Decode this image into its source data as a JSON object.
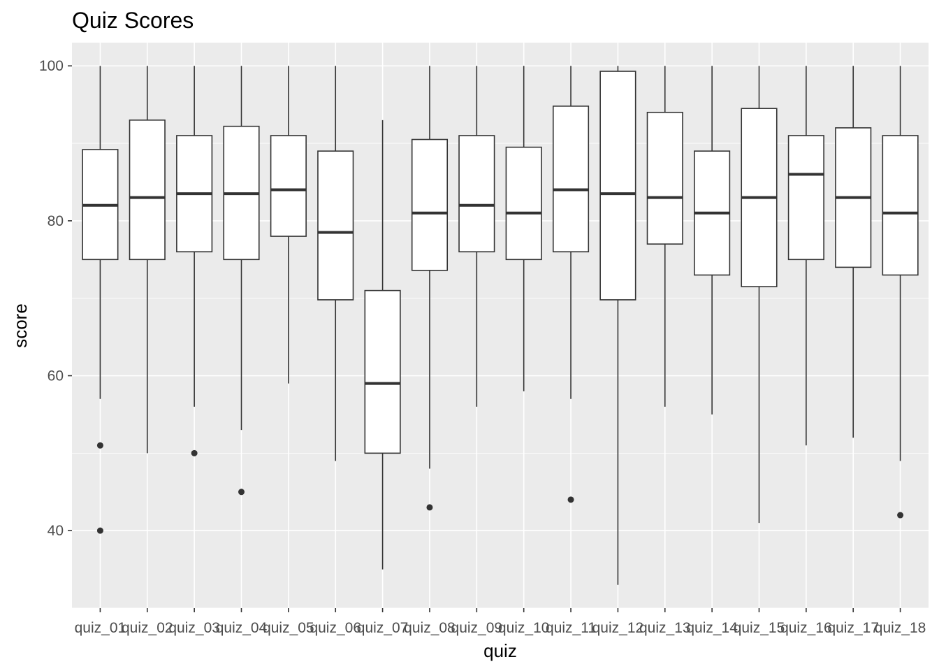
{
  "chart_data": {
    "type": "boxplot",
    "title": "Quiz Scores",
    "xlabel": "quiz",
    "ylabel": "score",
    "ylim": [
      30,
      103
    ],
    "y_ticks": [
      40,
      60,
      80,
      100
    ],
    "grid": true,
    "panel_background": "#EBEBEB",
    "box_fill": "#FFFFFF",
    "line_color": "#333333",
    "categories": [
      "quiz_01",
      "quiz_02",
      "quiz_03",
      "quiz_04",
      "quiz_05",
      "quiz_06",
      "quiz_07",
      "quiz_08",
      "quiz_09",
      "quiz_10",
      "quiz_11",
      "quiz_12",
      "quiz_13",
      "quiz_14",
      "quiz_15",
      "quiz_16",
      "quiz_17",
      "quiz_18"
    ],
    "boxes": [
      {
        "min": 57,
        "q1": 75,
        "median": 82,
        "q3": 89.2,
        "max": 100,
        "outliers": [
          51,
          40
        ]
      },
      {
        "min": 50,
        "q1": 75,
        "median": 83,
        "q3": 93,
        "max": 100,
        "outliers": []
      },
      {
        "min": 56,
        "q1": 76,
        "median": 83.5,
        "q3": 91,
        "max": 100,
        "outliers": [
          50
        ]
      },
      {
        "min": 53,
        "q1": 75,
        "median": 83.5,
        "q3": 92.2,
        "max": 100,
        "outliers": [
          45
        ]
      },
      {
        "min": 59,
        "q1": 78,
        "median": 84,
        "q3": 91,
        "max": 100,
        "outliers": []
      },
      {
        "min": 49,
        "q1": 69.8,
        "median": 78.5,
        "q3": 89,
        "max": 100,
        "outliers": []
      },
      {
        "min": 35,
        "q1": 50,
        "median": 59,
        "q3": 71,
        "max": 93,
        "outliers": []
      },
      {
        "min": 48,
        "q1": 73.6,
        "median": 81,
        "q3": 90.5,
        "max": 100,
        "outliers": [
          43
        ]
      },
      {
        "min": 56,
        "q1": 76,
        "median": 82,
        "q3": 91,
        "max": 100,
        "outliers": []
      },
      {
        "min": 58,
        "q1": 75,
        "median": 81,
        "q3": 89.5,
        "max": 100,
        "outliers": []
      },
      {
        "min": 57,
        "q1": 76,
        "median": 84,
        "q3": 94.8,
        "max": 100,
        "outliers": [
          44
        ]
      },
      {
        "min": 33,
        "q1": 69.8,
        "median": 83.5,
        "q3": 99.3,
        "max": 100,
        "outliers": []
      },
      {
        "min": 56,
        "q1": 77,
        "median": 83,
        "q3": 94,
        "max": 100,
        "outliers": []
      },
      {
        "min": 55,
        "q1": 73,
        "median": 81,
        "q3": 89,
        "max": 100,
        "outliers": []
      },
      {
        "min": 41,
        "q1": 71.5,
        "median": 83,
        "q3": 94.5,
        "max": 100,
        "outliers": []
      },
      {
        "min": 51,
        "q1": 75,
        "median": 86,
        "q3": 91,
        "max": 100,
        "outliers": []
      },
      {
        "min": 52,
        "q1": 74,
        "median": 83,
        "q3": 92,
        "max": 100,
        "outliers": []
      },
      {
        "min": 49,
        "q1": 73,
        "median": 81,
        "q3": 91,
        "max": 100,
        "outliers": [
          42
        ]
      }
    ]
  }
}
